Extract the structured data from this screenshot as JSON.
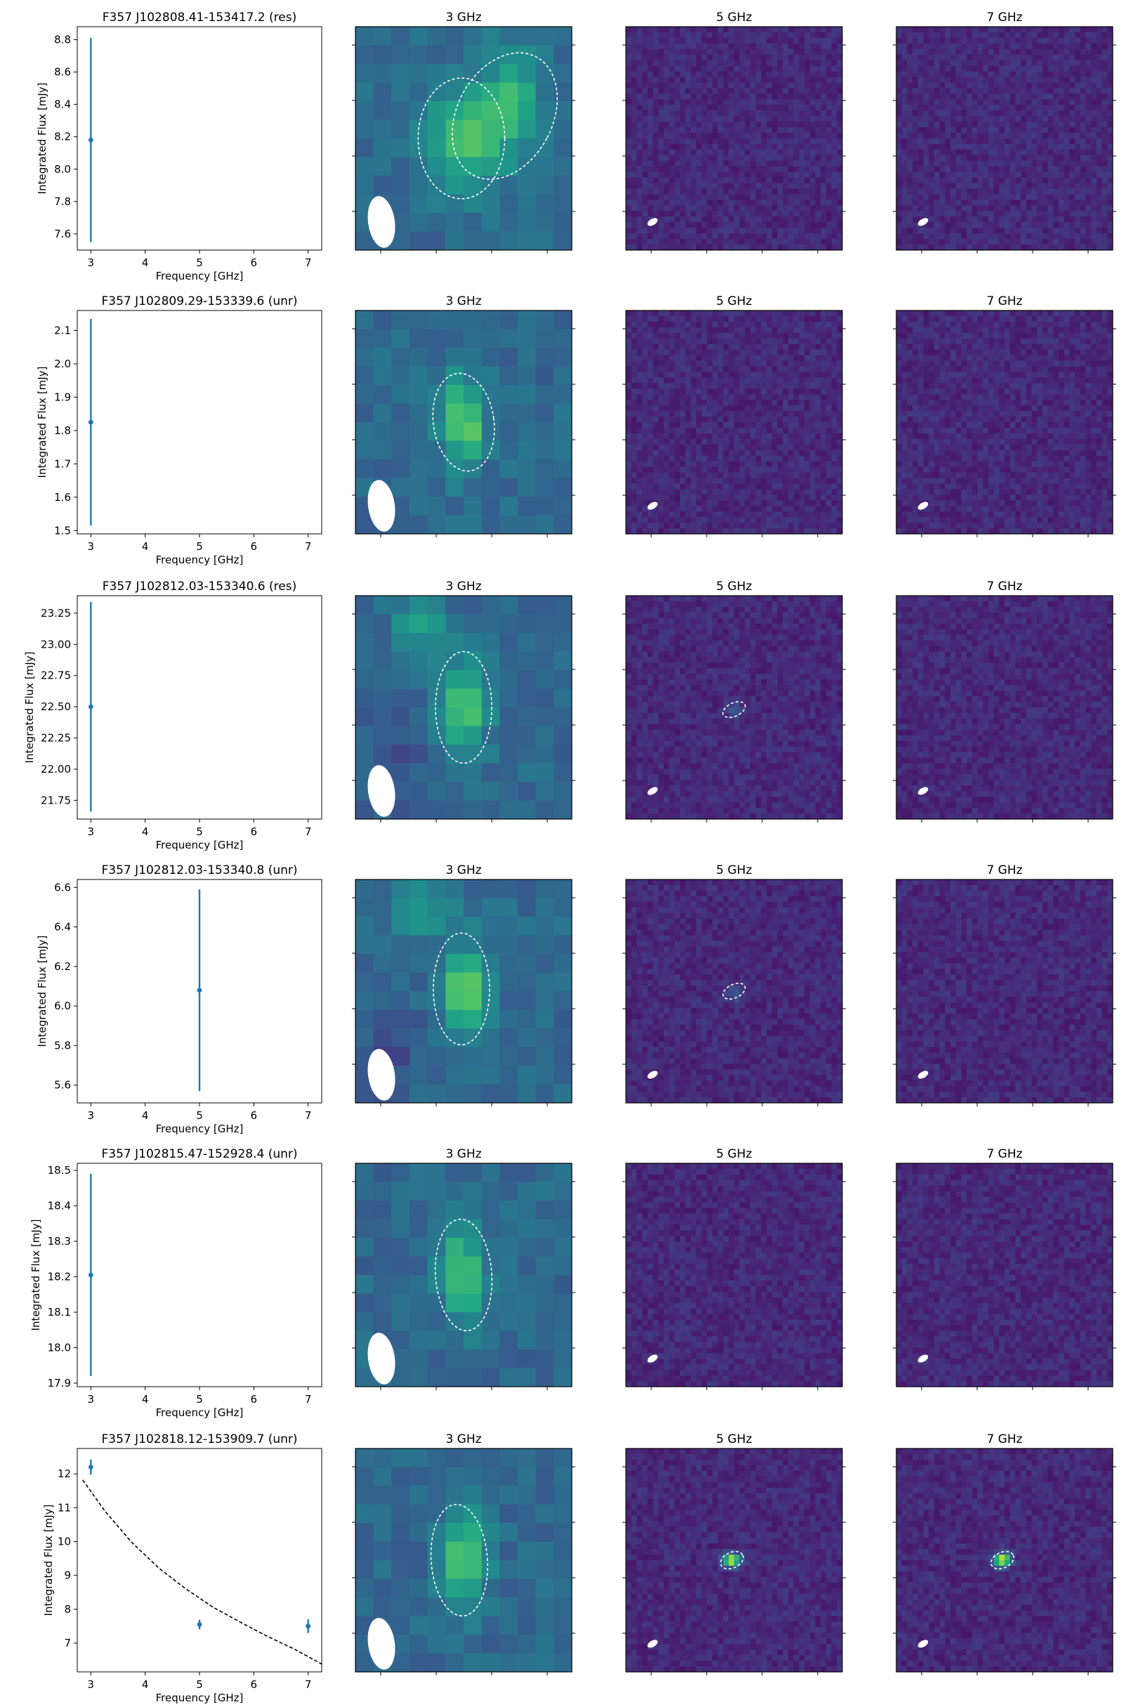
{
  "figure": {
    "x_axis_label": "Frequency [GHz]",
    "y_axis_label": "Integrated Flux [mJy]",
    "image_titles": [
      "3 GHz",
      "5 GHz",
      "7 GHz"
    ],
    "colors": {
      "errorbar": "#1f77b4",
      "fit_line": "#000000",
      "map_background": "#3b2f75",
      "ellipse": "#ffffff"
    },
    "colormap": "viridis"
  },
  "chart_data": [
    {
      "type": "scatter",
      "title": "F357 J102808.41-153417.2 (res)",
      "xlabel": "Frequency [GHz]",
      "ylabel": "Integrated Flux [mJy]",
      "xlim": [
        2.75,
        7.25
      ],
      "ylim": [
        7.5,
        8.88
      ],
      "xticks": [
        "3",
        "4",
        "5",
        "6",
        "7"
      ],
      "yticks": [
        "7.6",
        "7.8",
        "8.0",
        "8.2",
        "8.4",
        "8.6",
        "8.8"
      ],
      "points": [
        {
          "x": 3,
          "y": 8.18,
          "err": 0.63
        }
      ],
      "fit": null,
      "maps": [
        {
          "label": "3 GHz",
          "kind": "3ghz_double",
          "source_ellipses": [
            {
              "cx": 0.49,
              "cy": 0.5,
              "rx": 0.2,
              "ry": 0.27,
              "angle": 0
            },
            {
              "cx": 0.69,
              "cy": 0.4,
              "rx": 0.22,
              "ry": 0.3,
              "angle": 28
            }
          ]
        },
        {
          "label": "5 GHz",
          "kind": "noise",
          "source_ellipses": []
        },
        {
          "label": "7 GHz",
          "kind": "noise",
          "source_ellipses": []
        }
      ]
    },
    {
      "type": "scatter",
      "title": "F357 J102809.29-153339.6 (unr)",
      "xlabel": "Frequency [GHz]",
      "ylabel": "Integrated Flux [mJy]",
      "xlim": [
        2.75,
        7.25
      ],
      "ylim": [
        1.49,
        2.16
      ],
      "xticks": [
        "3",
        "4",
        "5",
        "6",
        "7"
      ],
      "yticks": [
        "1.5",
        "1.6",
        "1.7",
        "1.8",
        "1.9",
        "2.0",
        "2.1"
      ],
      "points": [
        {
          "x": 3,
          "y": 1.825,
          "err": 0.31
        }
      ],
      "fit": null,
      "maps": [
        {
          "label": "3 GHz",
          "kind": "3ghz_single",
          "source_ellipses": [
            {
              "cx": 0.5,
              "cy": 0.5,
              "rx": 0.14,
              "ry": 0.22,
              "angle": -8
            }
          ]
        },
        {
          "label": "5 GHz",
          "kind": "noise",
          "source_ellipses": []
        },
        {
          "label": "7 GHz",
          "kind": "noise",
          "source_ellipses": []
        }
      ]
    },
    {
      "type": "scatter",
      "title": "F357 J102812.03-153340.6 (res)",
      "xlabel": "Frequency [GHz]",
      "ylabel": "Integrated Flux [mJy]",
      "xlim": [
        2.75,
        7.25
      ],
      "ylim": [
        21.6,
        23.39
      ],
      "xticks": [
        "3",
        "4",
        "5",
        "6",
        "7"
      ],
      "yticks": [
        "21.75",
        "22.00",
        "22.25",
        "22.50",
        "22.75",
        "23.00",
        "23.25"
      ],
      "points": [
        {
          "x": 3,
          "y": 22.5,
          "err": 0.84
        }
      ],
      "fit": null,
      "maps": [
        {
          "label": "3 GHz",
          "kind": "3ghz_plume",
          "source_ellipses": [
            {
              "cx": 0.5,
              "cy": 0.5,
              "rx": 0.13,
              "ry": 0.25,
              "angle": 0
            }
          ]
        },
        {
          "label": "5 GHz",
          "kind": "noise_faint",
          "source_ellipses": [
            {
              "cx": 0.5,
              "cy": 0.51,
              "rx": 0.055,
              "ry": 0.03,
              "angle": -25
            }
          ]
        },
        {
          "label": "7 GHz",
          "kind": "noise",
          "source_ellipses": []
        }
      ]
    },
    {
      "type": "scatter",
      "title": "F357 J102812.03-153340.8 (unr)",
      "xlabel": "Frequency [GHz]",
      "ylabel": "Integrated Flux [mJy]",
      "xlim": [
        2.75,
        7.25
      ],
      "ylim": [
        5.51,
        6.64
      ],
      "xticks": [
        "3",
        "4",
        "5",
        "6",
        "7"
      ],
      "yticks": [
        "5.6",
        "5.8",
        "6.0",
        "6.2",
        "6.4",
        "6.6"
      ],
      "points": [
        {
          "x": 5,
          "y": 6.08,
          "err": 0.51
        }
      ],
      "fit": null,
      "maps": [
        {
          "label": "3 GHz",
          "kind": "3ghz_plume",
          "source_ellipses": [
            {
              "cx": 0.49,
              "cy": 0.49,
              "rx": 0.13,
              "ry": 0.25,
              "angle": 0
            }
          ]
        },
        {
          "label": "5 GHz",
          "kind": "noise_faint",
          "source_ellipses": [
            {
              "cx": 0.5,
              "cy": 0.5,
              "rx": 0.055,
              "ry": 0.03,
              "angle": -25
            }
          ]
        },
        {
          "label": "7 GHz",
          "kind": "noise",
          "source_ellipses": []
        }
      ]
    },
    {
      "type": "scatter",
      "title": "F357 J102815.47-152928.4 (unr)",
      "xlabel": "Frequency [GHz]",
      "ylabel": "Integrated Flux [mJy]",
      "xlim": [
        2.75,
        7.25
      ],
      "ylim": [
        17.89,
        18.52
      ],
      "xticks": [
        "3",
        "4",
        "5",
        "6",
        "7"
      ],
      "yticks": [
        "17.9",
        "18.0",
        "18.1",
        "18.2",
        "18.3",
        "18.4",
        "18.5"
      ],
      "points": [
        {
          "x": 3,
          "y": 18.205,
          "err": 0.285
        }
      ],
      "fit": null,
      "maps": [
        {
          "label": "3 GHz",
          "kind": "3ghz_single",
          "source_ellipses": [
            {
              "cx": 0.5,
              "cy": 0.5,
              "rx": 0.13,
              "ry": 0.25,
              "angle": -4
            }
          ]
        },
        {
          "label": "5 GHz",
          "kind": "noise",
          "source_ellipses": []
        },
        {
          "label": "7 GHz",
          "kind": "noise",
          "source_ellipses": []
        }
      ]
    },
    {
      "type": "scatter",
      "title": "F357 J102818.12-153909.7 (unr)",
      "xlabel": "Frequency [GHz]",
      "ylabel": "Integrated Flux [mJy]",
      "xlim": [
        2.75,
        7.25
      ],
      "ylim": [
        6.15,
        12.75
      ],
      "xticks": [
        "3",
        "4",
        "5",
        "6",
        "7"
      ],
      "yticks": [
        "7",
        "8",
        "9",
        "10",
        "11",
        "12"
      ],
      "points": [
        {
          "x": 3,
          "y": 12.2,
          "err": 0.22
        },
        {
          "x": 5,
          "y": 7.55,
          "err": 0.14
        },
        {
          "x": 7,
          "y": 7.5,
          "err": 0.2
        }
      ],
      "fit": {
        "style": "dashed",
        "x": [
          2.85,
          3.25,
          3.75,
          4.25,
          4.75,
          5.25,
          5.75,
          6.25,
          6.75,
          7.25
        ],
        "y": [
          11.82,
          10.92,
          9.98,
          9.22,
          8.6,
          8.06,
          7.62,
          7.2,
          6.82,
          6.38
        ]
      },
      "maps": [
        {
          "label": "3 GHz",
          "kind": "3ghz_single",
          "source_ellipses": [
            {
              "cx": 0.48,
              "cy": 0.5,
              "rx": 0.13,
              "ry": 0.25,
              "angle": -4
            }
          ]
        },
        {
          "label": "5 GHz",
          "kind": "noise_bright",
          "source_ellipses": [
            {
              "cx": 0.49,
              "cy": 0.5,
              "rx": 0.055,
              "ry": 0.035,
              "angle": -25
            }
          ]
        },
        {
          "label": "7 GHz",
          "kind": "noise_bright",
          "source_ellipses": [
            {
              "cx": 0.49,
              "cy": 0.5,
              "rx": 0.055,
              "ry": 0.035,
              "angle": -25
            }
          ]
        }
      ]
    }
  ]
}
